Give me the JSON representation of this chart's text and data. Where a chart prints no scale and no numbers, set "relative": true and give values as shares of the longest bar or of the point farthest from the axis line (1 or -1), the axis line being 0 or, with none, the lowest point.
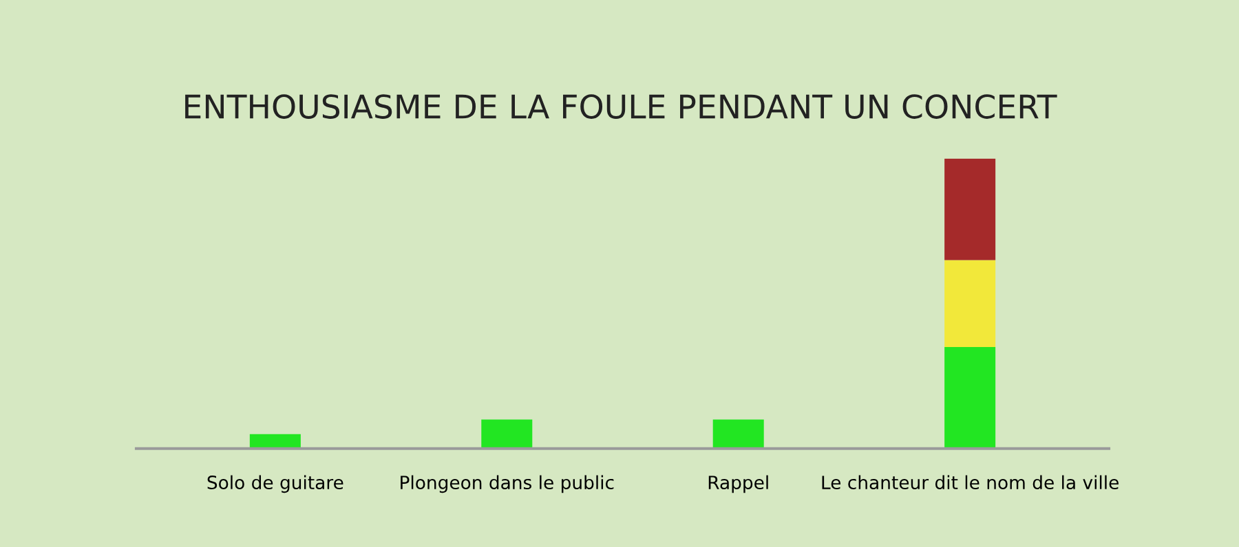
{
  "chart_data": {
    "type": "bar",
    "title": "ENTHOUSIASME DE LA FOULE PENDANT UN CONCERT",
    "relative": true,
    "stacked": true,
    "categories": [
      "Solo de guitare",
      "Plongeon dans le public",
      "Rappel",
      "Le chanteur dit le nom de la ville"
    ],
    "series": [
      {
        "color": "#22e622",
        "values": [
          0.05,
          0.1,
          0.1,
          0.35
        ]
      },
      {
        "color": "#f2e83a",
        "values": [
          null,
          null,
          null,
          0.3
        ]
      },
      {
        "color": "#a52a2a",
        "values": [
          null,
          null,
          null,
          0.35
        ]
      }
    ],
    "grid": false,
    "legend": false
  }
}
